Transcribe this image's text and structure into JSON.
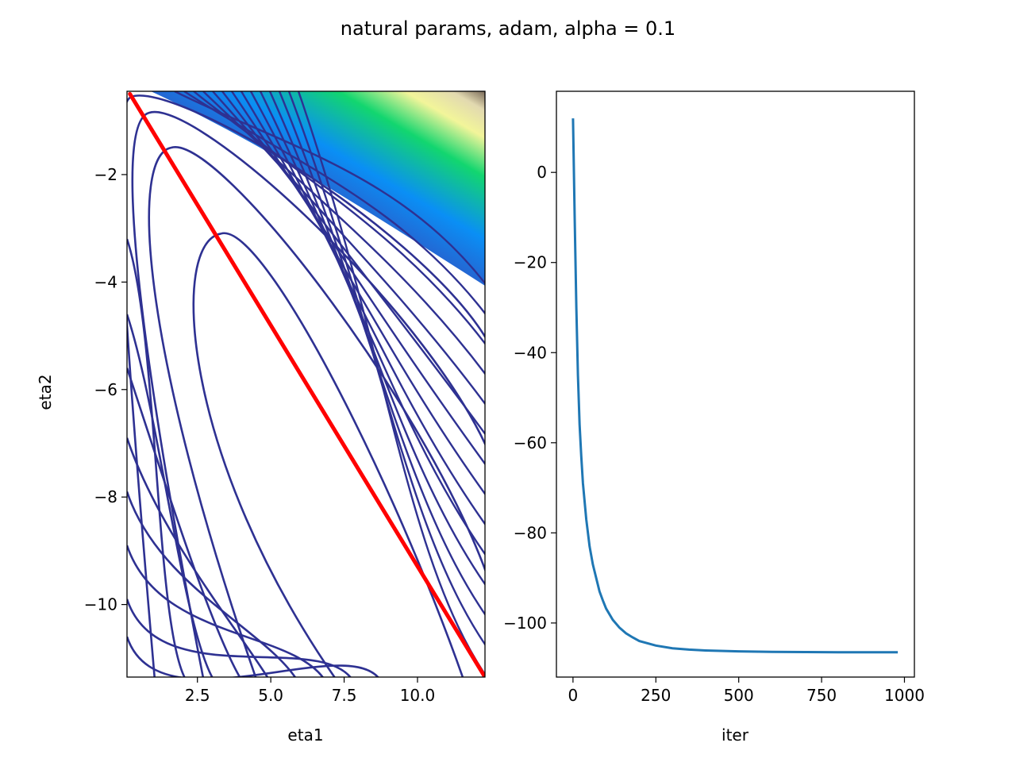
{
  "figure": {
    "suptitle": "natural params, adam, alpha = 0.1"
  },
  "chart_data": [
    {
      "type": "contour",
      "xlabel": "eta1",
      "ylabel": "eta2",
      "xlim": [
        0.1,
        12.3
      ],
      "ylim": [
        -11.35,
        -0.45
      ],
      "xticks": [
        2.5,
        5.0,
        7.5,
        10.0
      ],
      "xtick_labels": [
        "2.5",
        "5.0",
        "7.5",
        "10.0"
      ],
      "yticks": [
        -2,
        -4,
        -6,
        -8,
        -10
      ],
      "ytick_labels": [
        "−2",
        "−4",
        "−6",
        "−8",
        "−10"
      ],
      "colormap": [
        "#2a2f91",
        "#2f55c4",
        "#0a8ff5",
        "#12d66f",
        "#f2f59a",
        "#e2d9b0",
        "#7a6a5a"
      ],
      "contour_color": "#2e3192",
      "contour_ellipse_top_points": [
        {
          "eta1": 0.25,
          "eta2": -0.55
        },
        {
          "eta1": 0.85,
          "eta2": -0.85
        },
        {
          "eta1": 1.6,
          "eta2": -1.5
        },
        {
          "eta1": 3.3,
          "eta2": -3.1
        }
      ],
      "contour_lower_left_starts_eta2": [
        -3.2,
        -4.6,
        -5.6,
        -6.9,
        -7.9,
        -8.9,
        -9.9,
        -10.6
      ],
      "trajectory": {
        "color": "#ff0000",
        "start": {
          "eta1": 0.2,
          "eta2": -0.5
        },
        "end": {
          "eta1": 12.3,
          "eta2": -11.35
        }
      },
      "grid": false,
      "legend": "none"
    },
    {
      "type": "line",
      "xlabel": "iter",
      "ylabel": "",
      "xlim": [
        -50,
        1030
      ],
      "ylim": [
        -112,
        18
      ],
      "xticks": [
        0,
        250,
        500,
        750,
        1000
      ],
      "xtick_labels": [
        "0",
        "250",
        "500",
        "750",
        "1000"
      ],
      "yticks": [
        0,
        -20,
        -40,
        -60,
        -80,
        -100
      ],
      "ytick_labels": [
        "0",
        "−20",
        "−40",
        "−60",
        "−80",
        "−100"
      ],
      "series": [
        {
          "color": "#1f77b4",
          "x": [
            0,
            5,
            10,
            15,
            20,
            25,
            30,
            40,
            50,
            60,
            70,
            80,
            90,
            100,
            120,
            140,
            160,
            180,
            200,
            250,
            300,
            350,
            400,
            500,
            600,
            700,
            800,
            900,
            980
          ],
          "y": [
            12,
            -10,
            -30,
            -45,
            -56,
            -63,
            -69,
            -77,
            -83,
            -87,
            -90,
            -93,
            -95,
            -96.8,
            -99.3,
            -101,
            -102.3,
            -103.2,
            -104,
            -105,
            -105.6,
            -105.9,
            -106.1,
            -106.3,
            -106.4,
            -106.45,
            -106.5,
            -106.5,
            -106.5
          ]
        }
      ],
      "grid": false,
      "legend": "none"
    }
  ]
}
